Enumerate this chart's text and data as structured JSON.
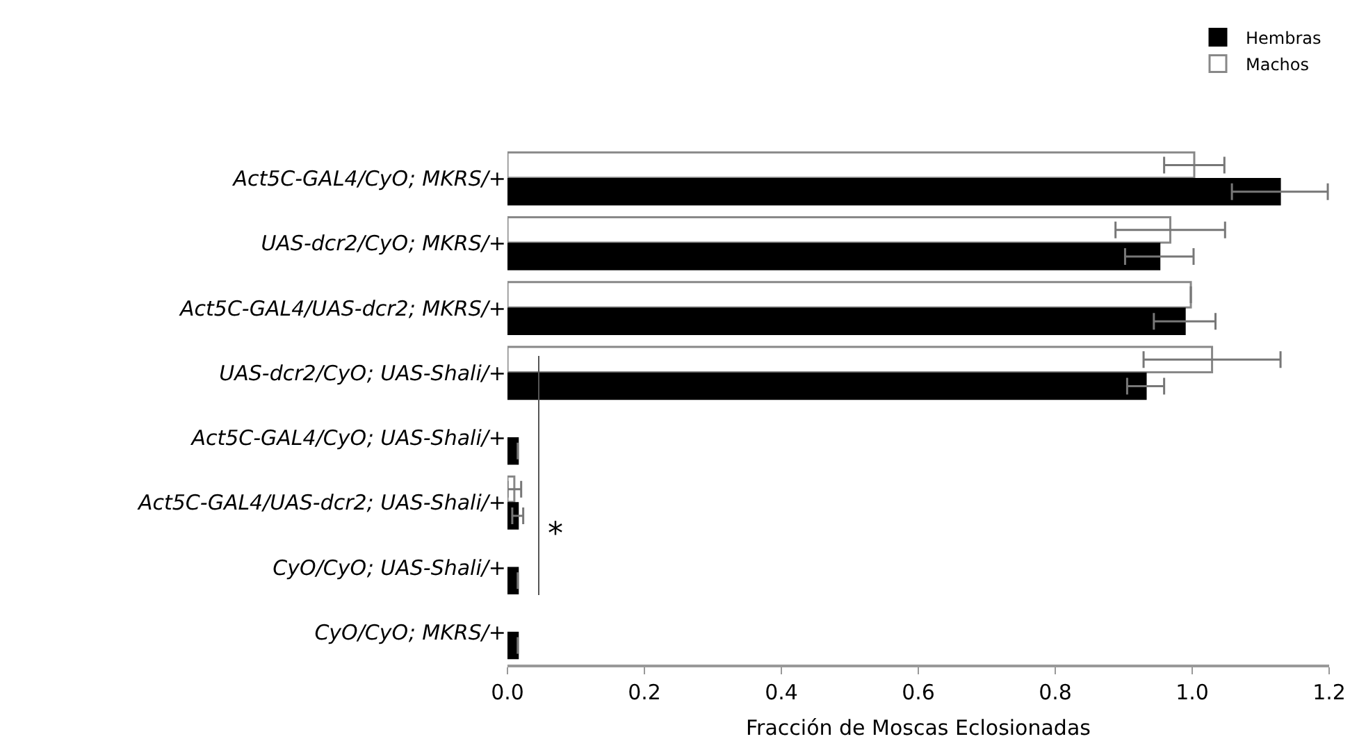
{
  "chart_data": {
    "type": "bar",
    "orientation": "horizontal",
    "xlabel": "Fracción de Moscas Eclosionadas",
    "categories": [
      "Act5C-GAL4/CyO; MKRS/+",
      "UAS-dcr2/CyO; MKRS/+",
      "Act5C-GAL4/UAS-dcr2; MKRS/+",
      "UAS-dcr2/CyO; UAS-Shali/+",
      "Act5C-GAL4/CyO; UAS-Shali/+",
      "Act5C-GAL4/UAS-dcr2; UAS-Shali/+",
      "CyO/CyO; UAS-Shali/+",
      "CyO/CyO; MKRS/+"
    ],
    "series": [
      {
        "name": "Hembras",
        "color": "#000000",
        "values": [
          1.128,
          0.952,
          0.989,
          0.932,
          0.015,
          0.015,
          0.015,
          0.015
        ],
        "errors": [
          0.07,
          0.05,
          0.045,
          0.027,
          null,
          0.008,
          null,
          null
        ]
      },
      {
        "name": "Machos",
        "color": "#ffffff",
        "values": [
          1.003,
          0.968,
          0.998,
          1.029,
          null,
          0.01,
          null,
          null
        ],
        "errors": [
          0.044,
          0.08,
          null,
          0.1,
          null,
          0.01,
          null,
          null
        ]
      }
    ],
    "xlim": [
      0,
      1.2
    ],
    "xticks": [
      {
        "value": 0,
        "label": "0.0"
      },
      0.2,
      0.4,
      0.6,
      0.8,
      {
        "value": 1,
        "label": "1.0"
      },
      1.2
    ],
    "annotations": [
      "*"
    ],
    "legend": "top right",
    "grid": false
  }
}
